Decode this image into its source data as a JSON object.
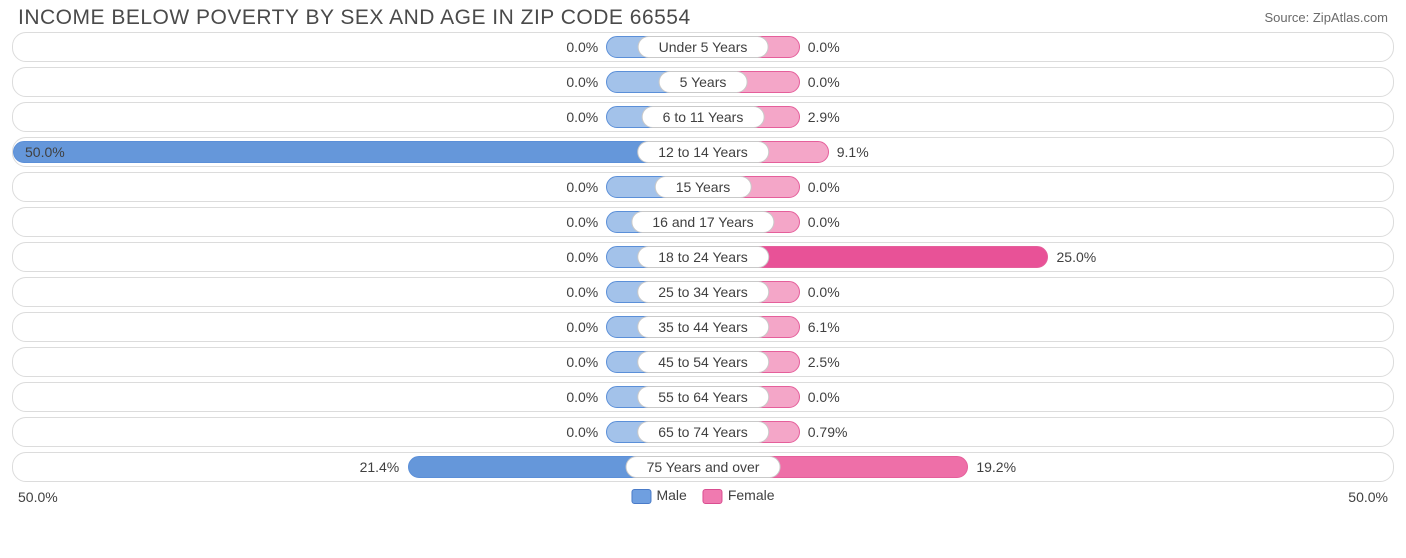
{
  "title": "INCOME BELOW POVERTY BY SEX AND AGE IN ZIP CODE 66554",
  "source": "Source: ZipAtlas.com",
  "axis": {
    "max_percent": 50.0,
    "left_label": "50.0%",
    "right_label": "50.0%"
  },
  "legend": {
    "male": {
      "label": "Male",
      "color": "#6f9fe0",
      "border": "#4a7bc8"
    },
    "female": {
      "label": "Female",
      "color": "#f07ab0",
      "border": "#d94e91"
    }
  },
  "colors": {
    "row_border": "#dcdcdc",
    "row_bg": "#ffffff",
    "text": "#404040",
    "title": "#4a4a4a",
    "male_fill": "#a3c2ea",
    "male_stroke": "#5b8fd8",
    "female_fill": "#f4a6c8",
    "female_stroke": "#e55f9b",
    "male_fill_strong": "#6597da",
    "female_fill_strong_a": "#ee6fa8",
    "female_fill_strong_b": "#e85297"
  },
  "min_bar_percent": 7.0,
  "label_gap": 8,
  "rows": [
    {
      "label": "Under 5 Years",
      "male": 0.0,
      "female": 0.0,
      "male_txt": "0.0%",
      "female_txt": "0.0%"
    },
    {
      "label": "5 Years",
      "male": 0.0,
      "female": 0.0,
      "male_txt": "0.0%",
      "female_txt": "0.0%"
    },
    {
      "label": "6 to 11 Years",
      "male": 0.0,
      "female": 2.9,
      "male_txt": "0.0%",
      "female_txt": "2.9%"
    },
    {
      "label": "12 to 14 Years",
      "male": 50.0,
      "female": 9.1,
      "male_txt": "50.0%",
      "female_txt": "9.1%",
      "male_strong": true
    },
    {
      "label": "15 Years",
      "male": 0.0,
      "female": 0.0,
      "male_txt": "0.0%",
      "female_txt": "0.0%"
    },
    {
      "label": "16 and 17 Years",
      "male": 0.0,
      "female": 0.0,
      "male_txt": "0.0%",
      "female_txt": "0.0%"
    },
    {
      "label": "18 to 24 Years",
      "male": 0.0,
      "female": 25.0,
      "male_txt": "0.0%",
      "female_txt": "25.0%",
      "female_strong": "b"
    },
    {
      "label": "25 to 34 Years",
      "male": 0.0,
      "female": 0.0,
      "male_txt": "0.0%",
      "female_txt": "0.0%"
    },
    {
      "label": "35 to 44 Years",
      "male": 0.0,
      "female": 6.1,
      "male_txt": "0.0%",
      "female_txt": "6.1%"
    },
    {
      "label": "45 to 54 Years",
      "male": 0.0,
      "female": 2.5,
      "male_txt": "0.0%",
      "female_txt": "2.5%"
    },
    {
      "label": "55 to 64 Years",
      "male": 0.0,
      "female": 0.0,
      "male_txt": "0.0%",
      "female_txt": "0.0%"
    },
    {
      "label": "65 to 74 Years",
      "male": 0.0,
      "female": 0.79,
      "male_txt": "0.0%",
      "female_txt": "0.79%"
    },
    {
      "label": "75 Years and over",
      "male": 21.4,
      "female": 19.2,
      "male_txt": "21.4%",
      "female_txt": "19.2%",
      "male_strong": true,
      "female_strong": "a"
    }
  ]
}
